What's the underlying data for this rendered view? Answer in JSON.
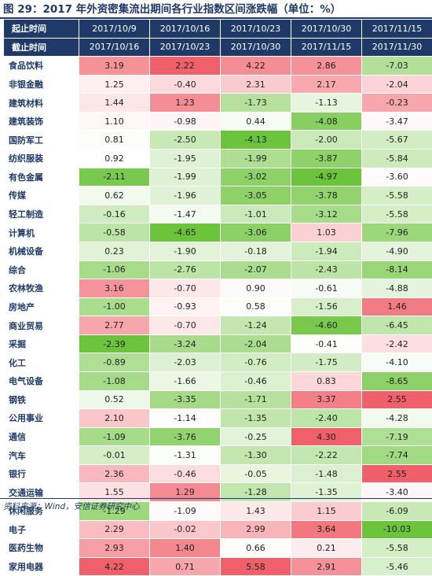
{
  "title": "图 29：2017 年外资密集流出期间各行业指数区间涨跌幅（单位：%）",
  "source": "资料来源：Wind，安信证券研究中心",
  "colors": {
    "header_bg": "#1f3a68",
    "label_text": "#1f3a68",
    "positive": "#f0606a",
    "negative": "#6cc43c",
    "neutral": "#ffffff"
  },
  "chart_data": {
    "type": "table",
    "title": "图 29：2017 年外资密集流出期间各行业指数区间涨跌幅（单位：%）",
    "header_rows": [
      {
        "label": "起止时间",
        "values": [
          "2017/10/9",
          "2017/10/16",
          "2017/10/23",
          "2017/10/30",
          "2017/11/15"
        ]
      },
      {
        "label": "截止时间",
        "values": [
          "2017/10/16",
          "2017/10/23",
          "2017/10/30",
          "2017/11/15",
          "2017/11/30"
        ]
      }
    ],
    "rows": [
      {
        "industry": "食品饮料",
        "values": [
          3.19,
          2.22,
          4.22,
          2.86,
          -7.03
        ]
      },
      {
        "industry": "非银金融",
        "values": [
          1.25,
          -0.4,
          2.31,
          2.17,
          -2.04
        ]
      },
      {
        "industry": "建筑材料",
        "values": [
          1.44,
          1.23,
          -1.73,
          -1.13,
          -0.23
        ]
      },
      {
        "industry": "建筑装饰",
        "values": [
          1.1,
          -0.98,
          0.44,
          -4.08,
          -3.47
        ]
      },
      {
        "industry": "国防军工",
        "values": [
          0.81,
          -2.5,
          -4.13,
          -2.0,
          -5.67
        ]
      },
      {
        "industry": "纺织服装",
        "values": [
          0.92,
          -1.95,
          -1.99,
          -3.87,
          -5.84
        ]
      },
      {
        "industry": "有色金属",
        "values": [
          -2.11,
          -1.99,
          -3.02,
          -4.97,
          -3.6
        ]
      },
      {
        "industry": "传媒",
        "values": [
          0.62,
          -1.96,
          -3.05,
          -3.78,
          -5.58
        ]
      },
      {
        "industry": "轻工制造",
        "values": [
          -0.16,
          -1.47,
          -1.01,
          -3.12,
          -5.58
        ]
      },
      {
        "industry": "计算机",
        "values": [
          -0.58,
          -4.65,
          -3.06,
          1.03,
          -7.96
        ]
      },
      {
        "industry": "机械设备",
        "values": [
          0.23,
          -1.9,
          -0.18,
          -1.94,
          -4.9
        ]
      },
      {
        "industry": "综合",
        "values": [
          -1.06,
          -2.76,
          -2.07,
          -2.43,
          -8.14
        ]
      },
      {
        "industry": "农林牧渔",
        "values": [
          3.16,
          -0.7,
          0.9,
          -0.61,
          -4.88
        ]
      },
      {
        "industry": "房地产",
        "values": [
          -1.0,
          -0.93,
          0.58,
          -1.56,
          1.46
        ]
      },
      {
        "industry": "商业贸易",
        "values": [
          2.77,
          -0.7,
          -1.24,
          -4.6,
          -6.45
        ]
      },
      {
        "industry": "采掘",
        "values": [
          -2.39,
          -3.24,
          -2.04,
          -0.41,
          -2.42
        ]
      },
      {
        "industry": "化工",
        "values": [
          -0.89,
          -2.03,
          -0.76,
          -1.75,
          -4.1
        ]
      },
      {
        "industry": "电气设备",
        "values": [
          -1.08,
          -1.66,
          -0.46,
          0.83,
          -8.65
        ]
      },
      {
        "industry": "钢铁",
        "values": [
          0.52,
          -3.35,
          -1.71,
          3.37,
          2.55
        ]
      },
      {
        "industry": "公用事业",
        "values": [
          2.1,
          -1.14,
          -1.35,
          -2.4,
          -4.28
        ]
      },
      {
        "industry": "通信",
        "values": [
          -1.09,
          -3.76,
          -0.25,
          4.3,
          -7.19
        ]
      },
      {
        "industry": "汽车",
        "values": [
          -0.01,
          -1.31,
          -1.3,
          -2.22,
          -7.74
        ]
      },
      {
        "industry": "银行",
        "values": [
          2.36,
          -0.46,
          -0.05,
          -1.48,
          2.55
        ]
      },
      {
        "industry": "交通运输",
        "values": [
          1.55,
          1.29,
          -1.28,
          -1.35,
          -3.4
        ]
      },
      {
        "industry": "休闲服务",
        "values": [
          -1.29,
          -1.09,
          1.43,
          1.15,
          -6.09
        ]
      },
      {
        "industry": "电子",
        "values": [
          2.29,
          -0.02,
          2.99,
          3.64,
          -10.03
        ]
      },
      {
        "industry": "医药生物",
        "values": [
          2.93,
          1.4,
          0.66,
          0.21,
          -5.58
        ]
      },
      {
        "industry": "家用电器",
        "values": [
          4.22,
          0.71,
          5.58,
          2.91,
          -5.46
        ]
      }
    ]
  }
}
